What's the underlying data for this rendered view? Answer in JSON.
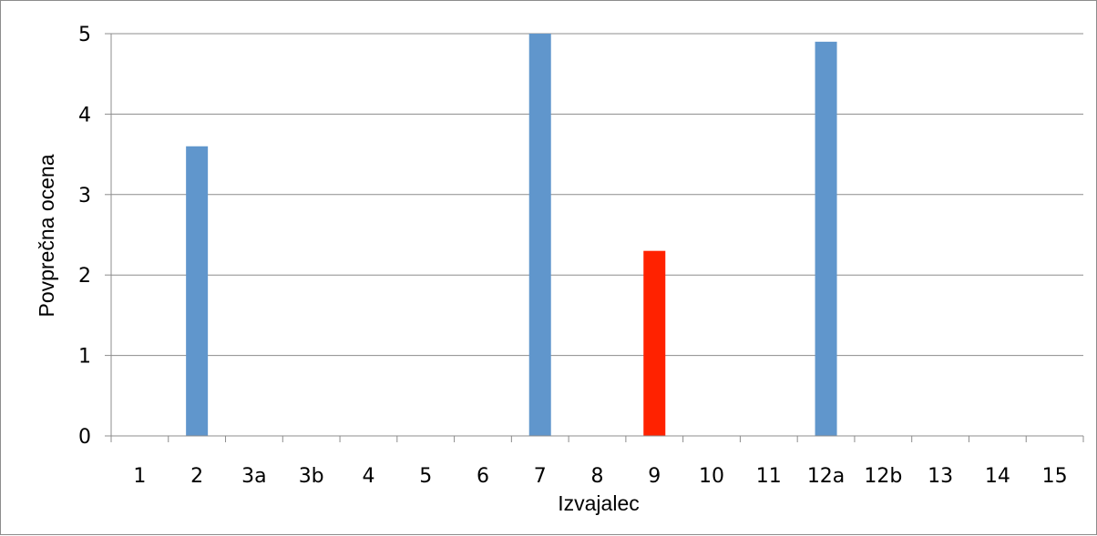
{
  "chart_data": {
    "type": "bar",
    "title": "",
    "xlabel": "Izvajalec",
    "ylabel": "Povprečna ocena",
    "categories": [
      "1",
      "2",
      "3a",
      "3b",
      "4",
      "5",
      "6",
      "7",
      "8",
      "9",
      "10",
      "11",
      "12a",
      "12b",
      "13",
      "14",
      "15"
    ],
    "values": [
      0,
      3.6,
      0,
      0,
      0,
      0,
      0,
      5,
      0,
      2.3,
      0,
      0,
      4.9,
      0,
      0,
      0,
      0
    ],
    "highlight_category": "9",
    "ylim": [
      0,
      5
    ],
    "yticks": [
      "0",
      "1",
      "2",
      "3",
      "4",
      "5"
    ],
    "grid": true,
    "legend": "none",
    "colors": {
      "bar": "#6096cc",
      "highlight": "#ff2200",
      "grid": "#8c8c8c",
      "axis": "#8c8c8c"
    }
  }
}
